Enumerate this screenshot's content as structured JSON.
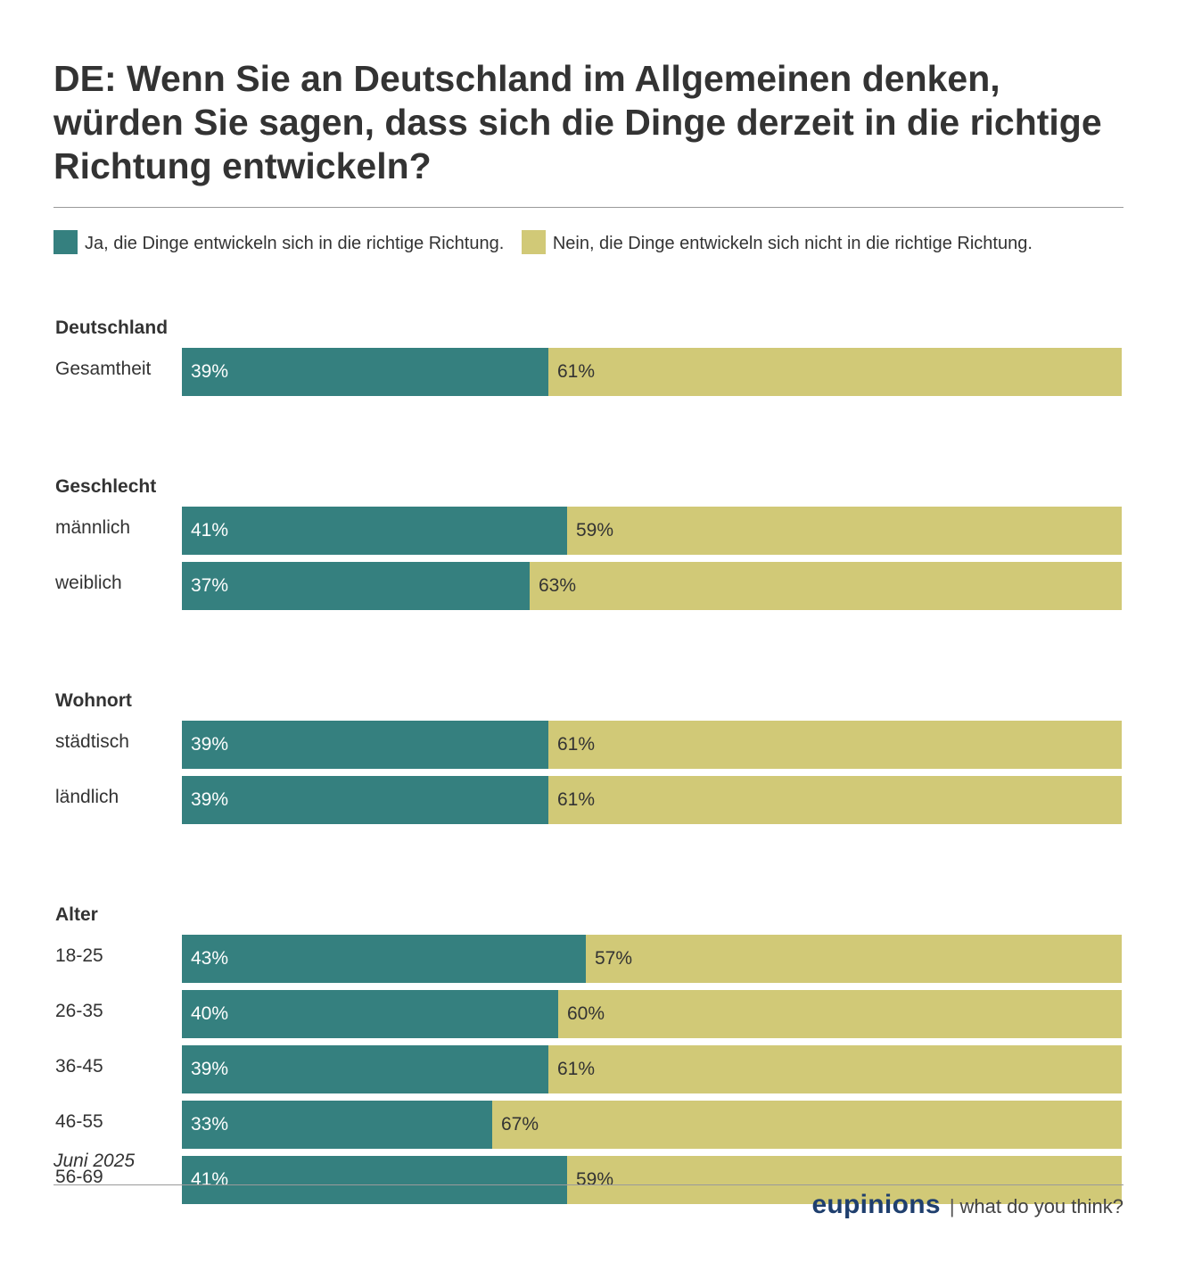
{
  "title": "DE: Wenn Sie an Deutschland im Allgemeinen denken, würden Sie sagen, dass sich die Dinge derzeit in die richtige Richtung entwickeln?",
  "footer": {
    "date": "Juni 2025",
    "brand": "eupinions",
    "separator": "|",
    "tagline": "what do you think?"
  },
  "colors": {
    "yes": "#35807f",
    "no": "#d1c977",
    "yes_text": "#ffffff",
    "no_text": "#333333"
  },
  "chart_data": {
    "type": "bar",
    "orientation": "horizontal",
    "stacked": true,
    "value_unit": "%",
    "xlim": [
      0,
      100
    ],
    "legend_position": "top-left",
    "grid": false,
    "series": [
      {
        "name": "Ja, die Dinge entwickeln sich in die richtige Richtung.",
        "key": "yes"
      },
      {
        "name": "Nein, die Dinge entwickeln sich nicht in die richtige Richtung.",
        "key": "no"
      }
    ],
    "groups": [
      {
        "label": "Deutschland",
        "rows": [
          {
            "label": "Gesamtheit",
            "yes": 39,
            "no": 61
          }
        ]
      },
      {
        "label": "Geschlecht",
        "rows": [
          {
            "label": "männlich",
            "yes": 41,
            "no": 59
          },
          {
            "label": "weiblich",
            "yes": 37,
            "no": 63
          }
        ]
      },
      {
        "label": "Wohnort",
        "rows": [
          {
            "label": "städtisch",
            "yes": 39,
            "no": 61
          },
          {
            "label": "ländlich",
            "yes": 39,
            "no": 61
          }
        ]
      },
      {
        "label": "Alter",
        "rows": [
          {
            "label": "18-25",
            "yes": 43,
            "no": 57
          },
          {
            "label": "26-35",
            "yes": 40,
            "no": 60
          },
          {
            "label": "36-45",
            "yes": 39,
            "no": 61
          },
          {
            "label": "46-55",
            "yes": 33,
            "no": 67
          },
          {
            "label": "56-69",
            "yes": 41,
            "no": 59
          }
        ]
      }
    ]
  }
}
